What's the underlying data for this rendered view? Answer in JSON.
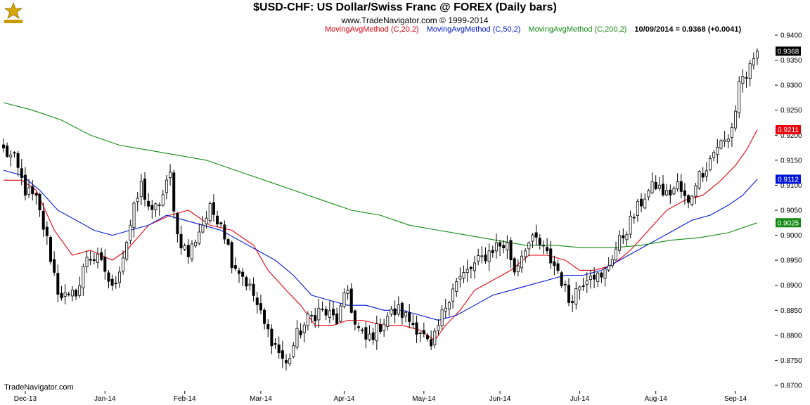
{
  "header": {
    "title": "$USD-CHF:  US Dollar/Swiss Franc @ FOREX  (Daily bars)",
    "website": "www.TradeNavigator.com © 1999-2014",
    "brand": "TradeNavigator.com"
  },
  "legend": [
    {
      "label": "MovingAvgMethod (C,20,2)",
      "color": "#e8000b"
    },
    {
      "label": "MovingAvgMethod (C,50,2)",
      "color": "#0014d6"
    },
    {
      "label": "MovingAvgMethod (C,200,2)",
      "color": "#138a13"
    },
    {
      "label": "10/09/2014 = 0.9368 (+0.0041)",
      "color": "#000000"
    }
  ],
  "chart_data": {
    "type": "candlestick",
    "ylim": [
      0.87,
      0.94
    ],
    "yticks": [
      "0.9400",
      "0.9350",
      "0.9300",
      "0.9250",
      "0.9200",
      "0.9150",
      "0.9100",
      "0.9050",
      "0.9000",
      "0.8950",
      "0.8900",
      "0.8850",
      "0.8800",
      "0.8750",
      "0.8700"
    ],
    "xticks": [
      {
        "label": "Dec-13",
        "index": 6
      },
      {
        "label": "Jan-14",
        "index": 28
      },
      {
        "label": "Feb-14",
        "index": 50
      },
      {
        "label": "Mar-14",
        "index": 71
      },
      {
        "label": "Apr-14",
        "index": 94
      },
      {
        "label": "May-14",
        "index": 116
      },
      {
        "label": "Jun-14",
        "index": 137
      },
      {
        "label": "Jul-14",
        "index": 159
      },
      {
        "label": "Aug-14",
        "index": 180
      },
      {
        "label": "Sep-14",
        "index": 202
      }
    ],
    "n_bars": 209,
    "closes": [
      [
        0,
        0.917
      ],
      [
        3,
        0.915
      ],
      [
        6,
        0.909
      ],
      [
        9,
        0.907
      ],
      [
        12,
        0.899
      ],
      [
        15,
        0.889
      ],
      [
        18,
        0.887
      ],
      [
        21,
        0.89
      ],
      [
        23,
        0.896
      ],
      [
        26,
        0.895
      ],
      [
        28,
        0.893
      ],
      [
        30,
        0.889
      ],
      [
        33,
        0.896
      ],
      [
        36,
        0.905
      ],
      [
        38,
        0.91
      ],
      [
        41,
        0.904
      ],
      [
        44,
        0.908
      ],
      [
        46,
        0.912
      ],
      [
        48,
        0.9
      ],
      [
        51,
        0.896
      ],
      [
        54,
        0.901
      ],
      [
        57,
        0.905
      ],
      [
        60,
        0.903
      ],
      [
        63,
        0.895
      ],
      [
        66,
        0.892
      ],
      [
        69,
        0.888
      ],
      [
        72,
        0.882
      ],
      [
        75,
        0.878
      ],
      [
        78,
        0.874
      ],
      [
        81,
        0.88
      ],
      [
        84,
        0.883
      ],
      [
        87,
        0.885
      ],
      [
        90,
        0.884
      ],
      [
        92,
        0.883
      ],
      [
        95,
        0.889
      ],
      [
        97,
        0.882
      ],
      [
        100,
        0.879
      ],
      [
        103,
        0.881
      ],
      [
        106,
        0.884
      ],
      [
        109,
        0.885
      ],
      [
        112,
        0.883
      ],
      [
        115,
        0.881
      ],
      [
        118,
        0.877
      ],
      [
        121,
        0.884
      ],
      [
        124,
        0.89
      ],
      [
        127,
        0.892
      ],
      [
        130,
        0.894
      ],
      [
        133,
        0.896
      ],
      [
        136,
        0.898
      ],
      [
        139,
        0.898
      ],
      [
        141,
        0.893
      ],
      [
        144,
        0.898
      ],
      [
        147,
        0.899
      ],
      [
        150,
        0.896
      ],
      [
        153,
        0.893
      ],
      [
        156,
        0.887
      ],
      [
        159,
        0.89
      ],
      [
        162,
        0.893
      ],
      [
        165,
        0.891
      ],
      [
        168,
        0.896
      ],
      [
        171,
        0.9
      ],
      [
        174,
        0.904
      ],
      [
        177,
        0.908
      ],
      [
        180,
        0.91
      ],
      [
        183,
        0.908
      ],
      [
        186,
        0.91
      ],
      [
        189,
        0.906
      ],
      [
        191,
        0.911
      ],
      [
        194,
        0.914
      ],
      [
        197,
        0.918
      ],
      [
        200,
        0.919
      ],
      [
        202,
        0.925
      ],
      [
        203,
        0.931
      ],
      [
        205,
        0.932
      ],
      [
        207,
        0.934
      ],
      [
        208,
        0.9368
      ]
    ],
    "series": [
      {
        "name": "MovingAvgMethod (C,20,2)",
        "color": "#e8000b",
        "last_value": "0.9211",
        "points": [
          [
            0,
            0.911
          ],
          [
            5,
            0.911
          ],
          [
            9,
            0.909
          ],
          [
            14,
            0.901
          ],
          [
            19,
            0.896
          ],
          [
            24,
            0.897
          ],
          [
            30,
            0.895
          ],
          [
            34,
            0.897
          ],
          [
            40,
            0.902
          ],
          [
            46,
            0.904
          ],
          [
            51,
            0.905
          ],
          [
            57,
            0.902
          ],
          [
            63,
            0.901
          ],
          [
            69,
            0.898
          ],
          [
            73,
            0.893
          ],
          [
            78,
            0.889
          ],
          [
            82,
            0.886
          ],
          [
            86,
            0.882
          ],
          [
            91,
            0.882
          ],
          [
            95,
            0.883
          ],
          [
            99,
            0.883
          ],
          [
            105,
            0.882
          ],
          [
            110,
            0.882
          ],
          [
            115,
            0.881
          ],
          [
            119,
            0.879
          ],
          [
            122,
            0.882
          ],
          [
            126,
            0.885
          ],
          [
            130,
            0.889
          ],
          [
            135,
            0.891
          ],
          [
            140,
            0.893
          ],
          [
            145,
            0.896
          ],
          [
            150,
            0.896
          ],
          [
            155,
            0.895
          ],
          [
            159,
            0.893
          ],
          [
            163,
            0.893
          ],
          [
            168,
            0.894
          ],
          [
            173,
            0.897
          ],
          [
            178,
            0.901
          ],
          [
            183,
            0.905
          ],
          [
            188,
            0.907
          ],
          [
            193,
            0.908
          ],
          [
            198,
            0.911
          ],
          [
            202,
            0.914
          ],
          [
            205,
            0.917
          ],
          [
            208,
            0.9211
          ]
        ]
      },
      {
        "name": "MovingAvgMethod (C,50,2)",
        "color": "#0014d6",
        "last_value": "0.9112",
        "points": [
          [
            0,
            0.913
          ],
          [
            5,
            0.912
          ],
          [
            10,
            0.909
          ],
          [
            15,
            0.905
          ],
          [
            20,
            0.903
          ],
          [
            25,
            0.901
          ],
          [
            30,
            0.9
          ],
          [
            35,
            0.901
          ],
          [
            40,
            0.902
          ],
          [
            45,
            0.904
          ],
          [
            50,
            0.903
          ],
          [
            55,
            0.902
          ],
          [
            60,
            0.901
          ],
          [
            65,
            0.899
          ],
          [
            70,
            0.897
          ],
          [
            75,
            0.895
          ],
          [
            80,
            0.892
          ],
          [
            85,
            0.888
          ],
          [
            90,
            0.887
          ],
          [
            95,
            0.886
          ],
          [
            100,
            0.886
          ],
          [
            105,
            0.885
          ],
          [
            110,
            0.885
          ],
          [
            115,
            0.884
          ],
          [
            120,
            0.883
          ],
          [
            125,
            0.884
          ],
          [
            130,
            0.886
          ],
          [
            135,
            0.888
          ],
          [
            140,
            0.889
          ],
          [
            145,
            0.89
          ],
          [
            150,
            0.891
          ],
          [
            155,
            0.892
          ],
          [
            160,
            0.892
          ],
          [
            165,
            0.893
          ],
          [
            170,
            0.895
          ],
          [
            175,
            0.897
          ],
          [
            180,
            0.899
          ],
          [
            185,
            0.901
          ],
          [
            190,
            0.903
          ],
          [
            195,
            0.904
          ],
          [
            200,
            0.906
          ],
          [
            204,
            0.908
          ],
          [
            208,
            0.9112
          ]
        ]
      },
      {
        "name": "MovingAvgMethod (C,200,2)",
        "color": "#138a13",
        "last_value": "0.9025",
        "points": [
          [
            0,
            0.9265
          ],
          [
            8,
            0.925
          ],
          [
            16,
            0.923
          ],
          [
            24,
            0.92
          ],
          [
            32,
            0.918
          ],
          [
            40,
            0.917
          ],
          [
            48,
            0.916
          ],
          [
            56,
            0.915
          ],
          [
            64,
            0.913
          ],
          [
            72,
            0.911
          ],
          [
            80,
            0.909
          ],
          [
            88,
            0.907
          ],
          [
            96,
            0.905
          ],
          [
            104,
            0.904
          ],
          [
            112,
            0.902
          ],
          [
            120,
            0.901
          ],
          [
            128,
            0.9
          ],
          [
            136,
            0.899
          ],
          [
            144,
            0.898
          ],
          [
            152,
            0.898
          ],
          [
            160,
            0.8975
          ],
          [
            168,
            0.8975
          ],
          [
            176,
            0.898
          ],
          [
            184,
            0.899
          ],
          [
            192,
            0.8995
          ],
          [
            200,
            0.9005
          ],
          [
            208,
            0.9025
          ]
        ]
      }
    ],
    "last_close": {
      "label": "0.9368",
      "value": 0.9368
    }
  }
}
